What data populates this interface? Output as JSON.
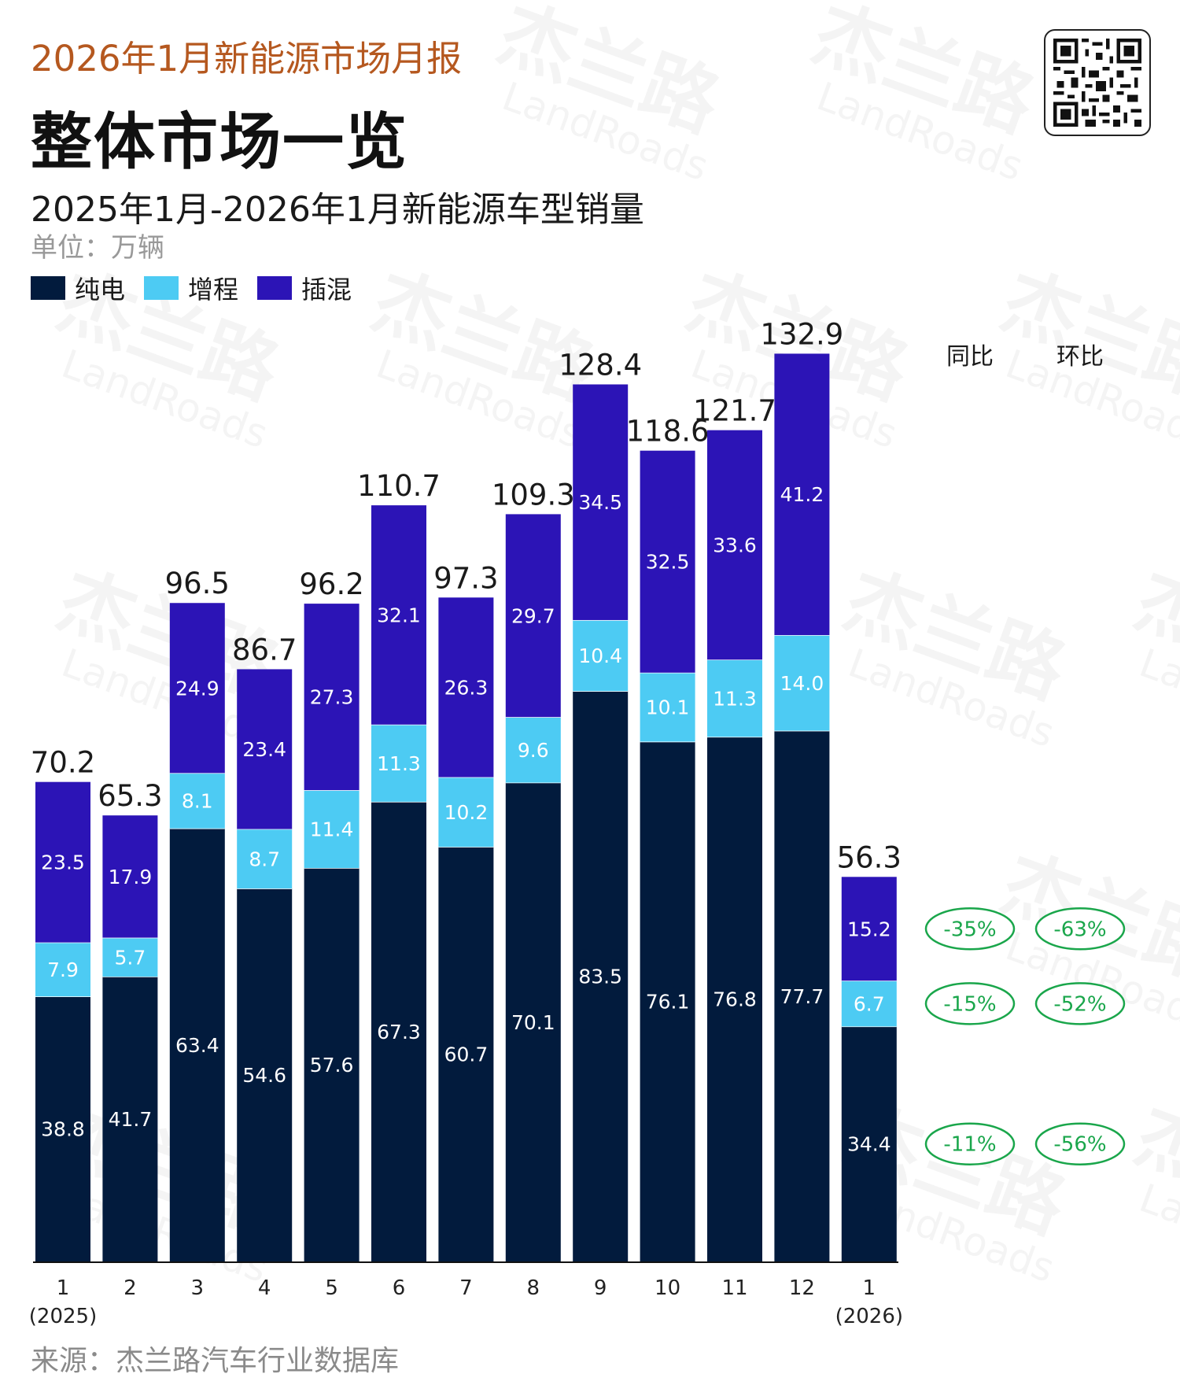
{
  "header": {
    "brand": "2026年1月新能源市场月报",
    "title": "整体市场一览",
    "subtitle": "2025年1月-2026年1月新能源车型销量",
    "unit": "单位：万辆"
  },
  "watermark": {
    "cn": "杰兰路",
    "en": "LandRoads"
  },
  "legend": [
    {
      "label": "纯电",
      "color": "#021b3d"
    },
    {
      "label": "增程",
      "color": "#4dcbf3"
    },
    {
      "label": "插混",
      "color": "#2c14b6"
    }
  ],
  "footer": {
    "source": "来源：杰兰路汽车行业数据库"
  },
  "chart_data": {
    "type": "bar",
    "stacked": true,
    "unit": "万辆",
    "categories": [
      "1",
      "2",
      "3",
      "4",
      "5",
      "6",
      "7",
      "8",
      "9",
      "10",
      "11",
      "12",
      "1"
    ],
    "category_sublabels": [
      "(2025)",
      "",
      "",
      "",
      "",
      "",
      "",
      "",
      "",
      "",
      "",
      "",
      "(2026)"
    ],
    "series": [
      {
        "name": "纯电",
        "color": "#021b3d",
        "values": [
          38.8,
          41.7,
          63.4,
          54.6,
          57.6,
          67.3,
          60.7,
          70.1,
          83.5,
          76.1,
          76.8,
          77.7,
          34.4
        ]
      },
      {
        "name": "增程",
        "color": "#4dcbf3",
        "values": [
          7.9,
          5.7,
          8.1,
          8.7,
          11.4,
          11.3,
          10.2,
          9.6,
          10.4,
          10.1,
          11.3,
          14.0,
          6.7
        ]
      },
      {
        "name": "插混",
        "color": "#2c14b6",
        "values": [
          23.5,
          17.9,
          24.9,
          23.4,
          27.3,
          32.1,
          26.3,
          29.7,
          34.5,
          32.5,
          33.6,
          41.2,
          15.2
        ]
      }
    ],
    "totals": [
      70.2,
      65.3,
      96.5,
      86.7,
      96.2,
      110.7,
      97.3,
      109.3,
      128.4,
      118.6,
      121.7,
      132.9,
      56.3
    ],
    "ylim": [
      0,
      140
    ],
    "comparison": {
      "headers": [
        "同比",
        "环比"
      ],
      "rows": [
        {
          "series": "插混",
          "yoy": "-35%",
          "mom": "-63%"
        },
        {
          "series": "增程",
          "yoy": "-15%",
          "mom": "-52%"
        },
        {
          "series": "纯电",
          "yoy": "-11%",
          "mom": "-56%"
        }
      ],
      "badge_color": "#1aa64b"
    }
  }
}
